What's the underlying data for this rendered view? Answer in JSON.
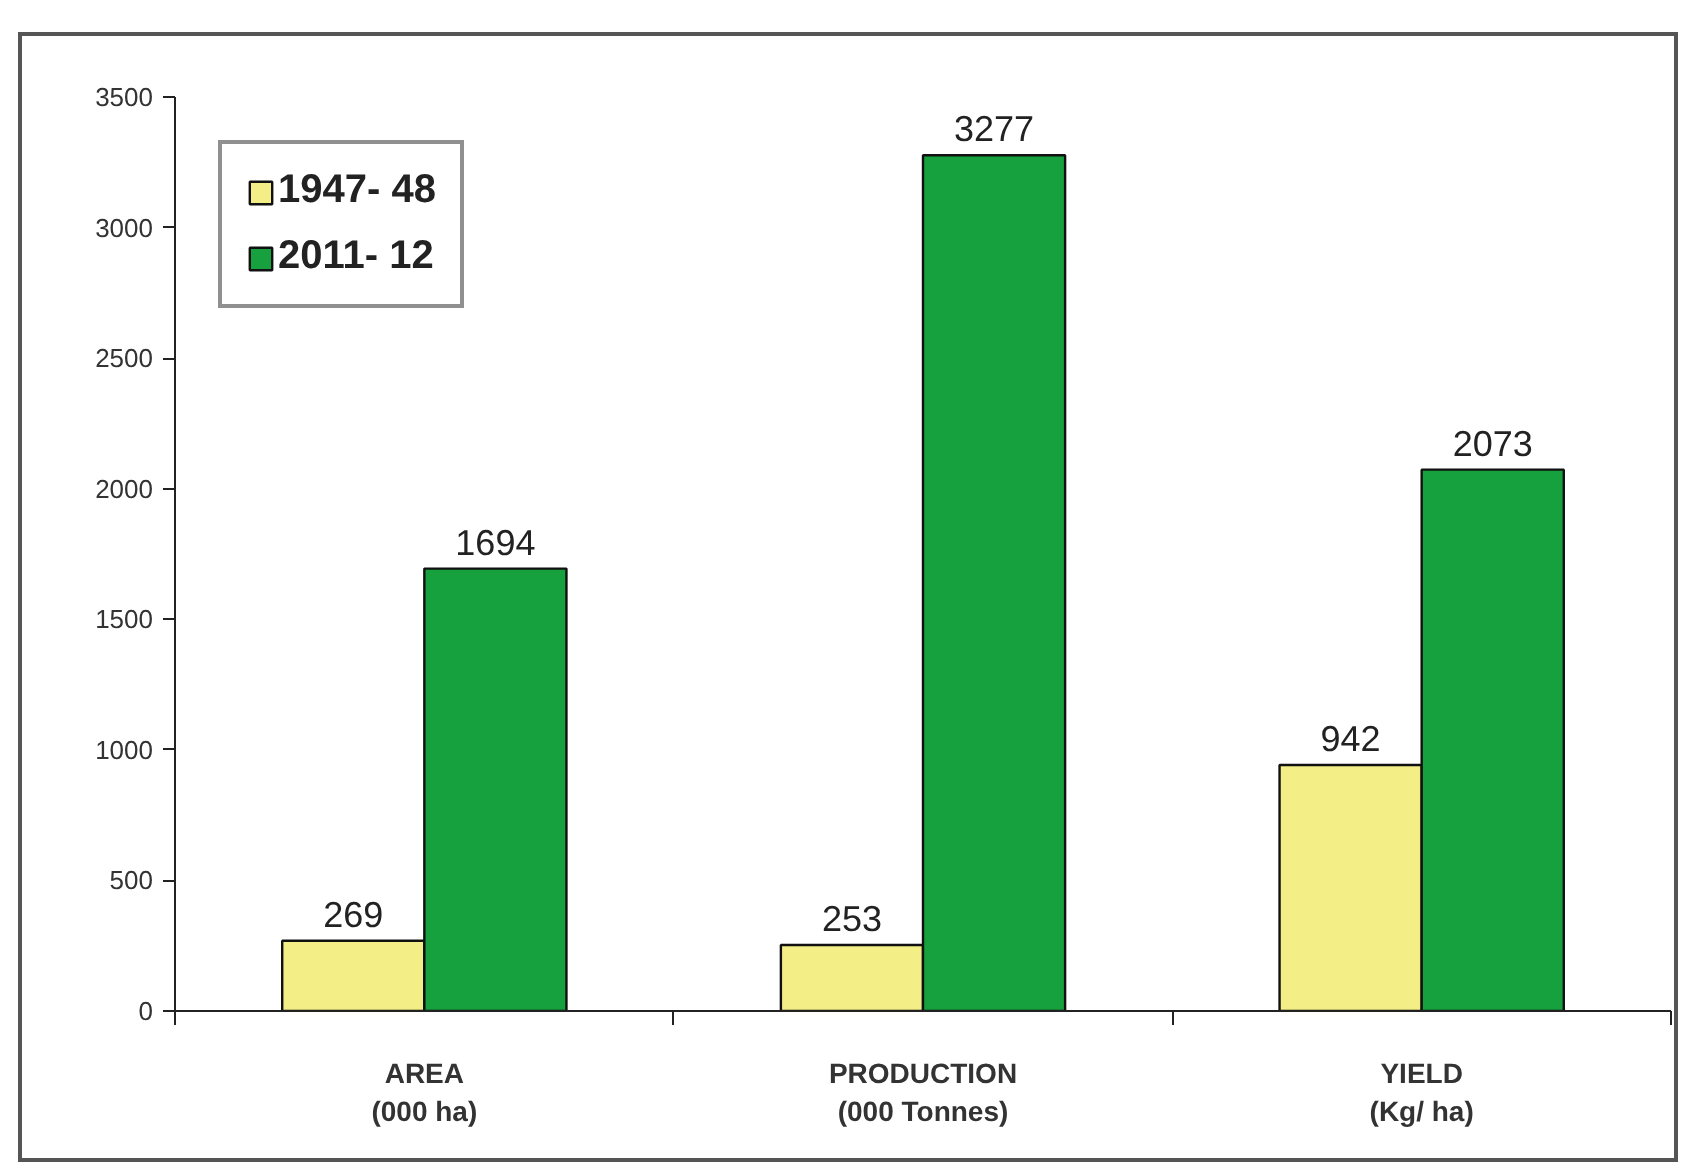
{
  "chart_data": {
    "type": "bar",
    "categories": [
      "AREA\n(000 ha)",
      "PRODUCTION\n(000 Tonnes)",
      "YIELD\n(Kg/ ha)"
    ],
    "series": [
      {
        "name": "1947- 48",
        "color": "#f3ee86",
        "values": [
          269,
          253,
          942
        ]
      },
      {
        "name": "2011- 12",
        "color": "#16a03e",
        "values": [
          1694,
          3277,
          2073
        ]
      }
    ],
    "ylim": [
      0,
      3500
    ],
    "yticks": [
      0,
      500,
      1000,
      1500,
      2000,
      2500,
      3000,
      3500
    ],
    "data_labels": true,
    "legend": "top left",
    "grid": false
  }
}
